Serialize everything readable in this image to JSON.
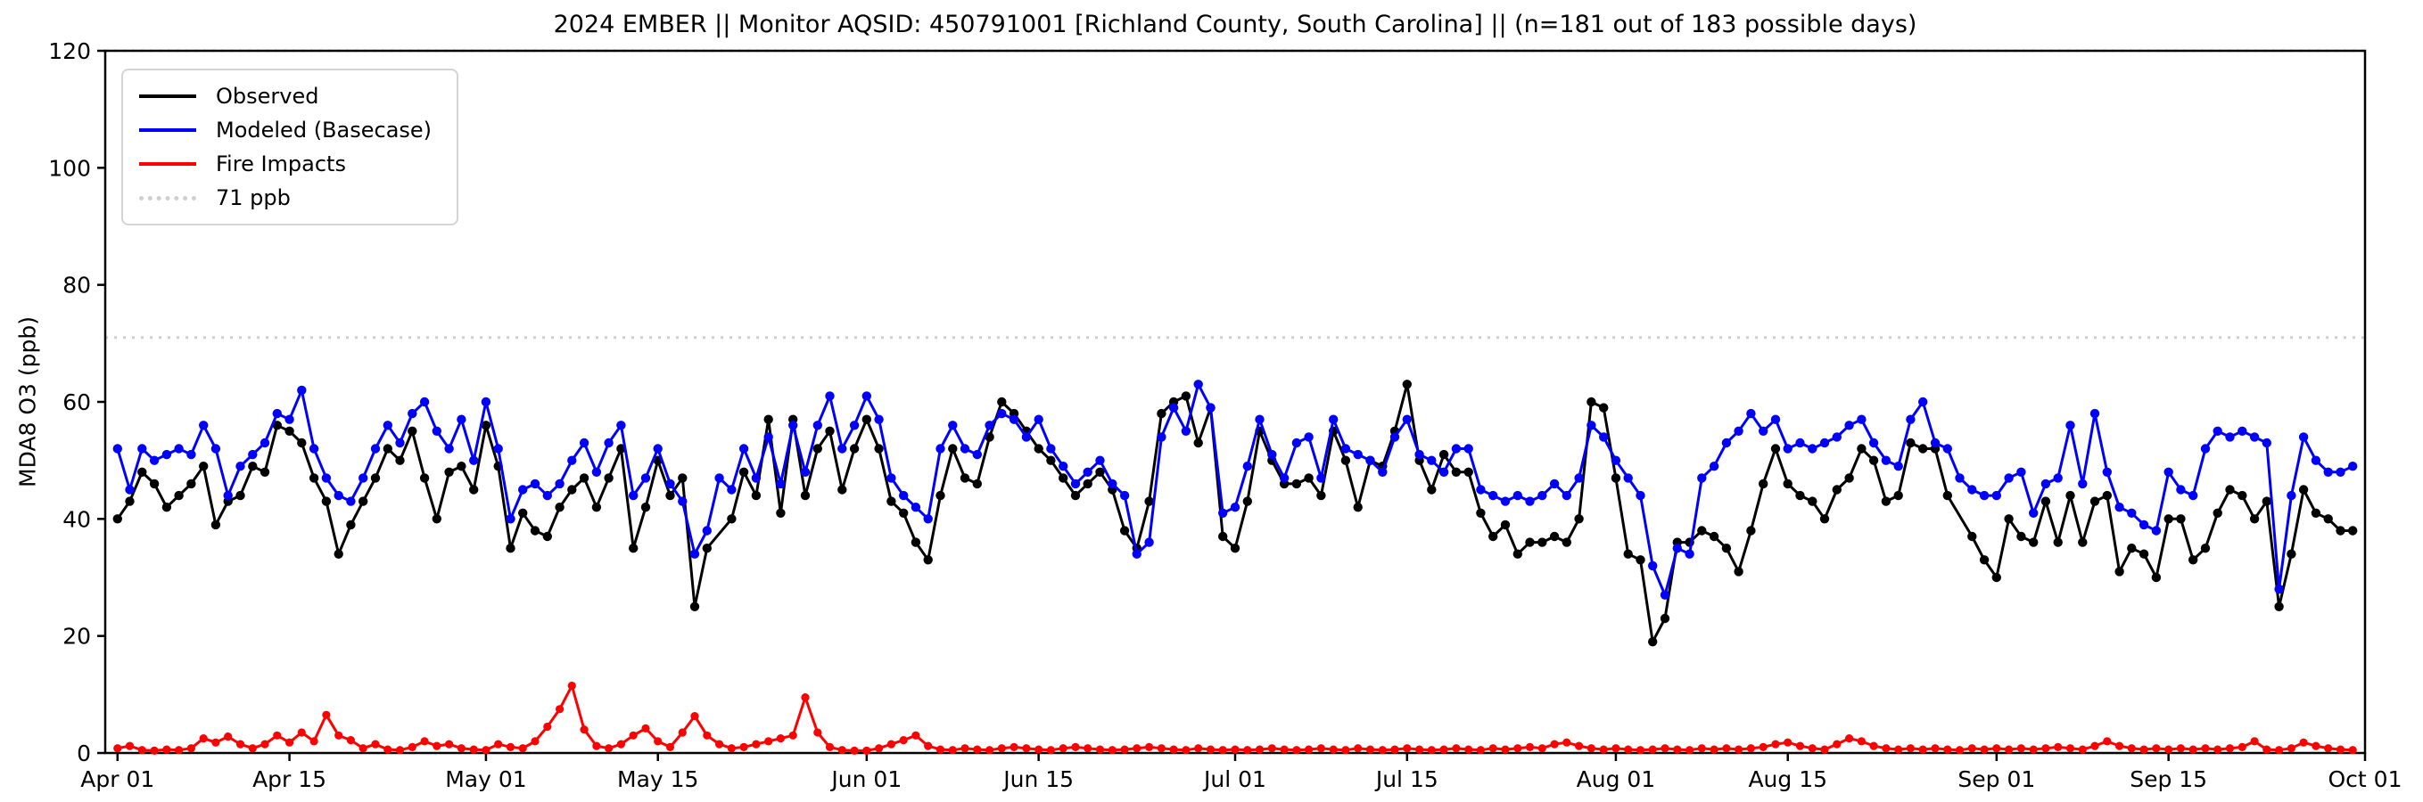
{
  "chart_data": {
    "type": "line",
    "title": "2024 EMBER || Monitor AQSID: 450791001 [Richland County, South Carolina] || (n=181 out of 183 possible days)",
    "ylabel": "MDA8 O3 (ppb)",
    "ylim": [
      0,
      120
    ],
    "yticks": [
      0,
      20,
      40,
      60,
      80,
      100,
      120
    ],
    "xticks": {
      "labels": [
        "Apr 01",
        "Apr 15",
        "May 01",
        "May 15",
        "Jun 01",
        "Jun 15",
        "Jul 01",
        "Jul 15",
        "Aug 01",
        "Aug 15",
        "Sep 01",
        "Sep 15",
        "Oct 01"
      ],
      "days": [
        0,
        14,
        30,
        44,
        61,
        75,
        91,
        105,
        122,
        136,
        153,
        167,
        183
      ]
    },
    "x_days_total": 183,
    "x_range_labels": [
      "Apr 01",
      "Oct 01"
    ],
    "grid": false,
    "legend_position": "upper left",
    "thresholds": [
      {
        "label": "71 ppb",
        "value": 71,
        "color": "#cfcfcf",
        "style": "dotted",
        "in_legend": true
      },
      {
        "label": "",
        "value": 120,
        "color": "#cfcfcf",
        "style": "dotted",
        "in_legend": false
      }
    ],
    "series": [
      {
        "name": "Observed",
        "color": "#000000",
        "marker": "circle",
        "n_days": 181,
        "values": [
          40,
          43,
          48,
          46,
          42,
          44,
          46,
          49,
          39,
          43,
          44,
          49,
          48,
          56,
          55,
          53,
          47,
          43,
          34,
          39,
          43,
          47,
          52,
          50,
          55,
          47,
          40,
          48,
          49,
          45,
          56,
          49,
          35,
          41,
          38,
          37,
          42,
          45,
          47,
          42,
          47,
          52,
          35,
          42,
          50,
          44,
          47,
          25,
          35,
          null,
          40,
          48,
          44,
          57,
          41,
          57,
          44,
          52,
          55,
          45,
          52,
          57,
          52,
          43,
          41,
          36,
          33,
          44,
          52,
          47,
          46,
          54,
          60,
          58,
          55,
          52,
          50,
          47,
          44,
          46,
          48,
          45,
          38,
          35,
          43,
          58,
          60,
          61,
          53,
          59,
          37,
          35,
          43,
          55,
          50,
          46,
          46,
          47,
          44,
          55,
          50,
          42,
          50,
          49,
          55,
          63,
          50,
          45,
          51,
          48,
          48,
          41,
          37,
          39,
          34,
          36,
          36,
          37,
          36,
          40,
          60,
          59,
          47,
          34,
          33,
          19,
          23,
          36,
          36,
          38,
          37,
          35,
          31,
          38,
          46,
          52,
          46,
          44,
          43,
          40,
          45,
          47,
          52,
          50,
          43,
          44,
          53,
          52,
          52,
          44,
          null,
          37,
          33,
          30,
          40,
          37,
          36,
          43,
          36,
          44,
          36,
          43,
          44,
          31,
          35,
          34,
          30,
          40,
          40,
          33,
          35,
          41,
          45,
          44,
          40,
          43,
          25,
          34,
          45,
          41,
          40,
          38,
          38
        ]
      },
      {
        "name": "Modeled (Basecase)",
        "color": "#0000ff",
        "marker": "circle",
        "n_days": 183,
        "values": [
          52,
          45,
          52,
          50,
          51,
          52,
          51,
          56,
          52,
          44,
          49,
          51,
          53,
          58,
          57,
          62,
          52,
          47,
          44,
          43,
          47,
          52,
          56,
          53,
          58,
          60,
          55,
          52,
          57,
          50,
          60,
          52,
          40,
          45,
          46,
          44,
          46,
          50,
          53,
          48,
          53,
          56,
          44,
          47,
          52,
          46,
          43,
          34,
          38,
          47,
          45,
          52,
          47,
          54,
          46,
          56,
          48,
          56,
          61,
          52,
          56,
          61,
          57,
          47,
          44,
          42,
          40,
          52,
          56,
          52,
          51,
          56,
          58,
          57,
          54,
          57,
          52,
          49,
          46,
          48,
          50,
          46,
          44,
          34,
          36,
          54,
          59,
          55,
          63,
          59,
          41,
          42,
          49,
          57,
          51,
          47,
          53,
          54,
          47,
          57,
          52,
          51,
          50,
          48,
          54,
          57,
          51,
          50,
          48,
          52,
          52,
          45,
          44,
          43,
          44,
          43,
          44,
          46,
          44,
          47,
          56,
          54,
          50,
          47,
          44,
          32,
          27,
          35,
          34,
          47,
          49,
          53,
          55,
          58,
          55,
          57,
          52,
          53,
          52,
          53,
          54,
          56,
          57,
          53,
          50,
          49,
          57,
          60,
          53,
          52,
          47,
          45,
          44,
          44,
          47,
          48,
          41,
          46,
          47,
          56,
          46,
          58,
          48,
          42,
          41,
          39,
          38,
          48,
          45,
          44,
          52,
          55,
          54,
          55,
          54,
          53,
          28,
          44,
          54,
          50,
          48,
          48,
          49
        ]
      },
      {
        "name": "Fire Impacts",
        "color": "#ff0000",
        "marker": "circle",
        "n_days": 183,
        "values": [
          0.8,
          1.2,
          0.5,
          0.4,
          0.6,
          0.5,
          0.8,
          2.5,
          1.8,
          2.8,
          1.5,
          0.8,
          1.5,
          3.0,
          1.8,
          3.5,
          2.0,
          6.5,
          3.0,
          2.2,
          0.8,
          1.5,
          0.6,
          0.5,
          1.0,
          2.0,
          1.2,
          1.5,
          0.8,
          0.6,
          0.5,
          1.5,
          1.0,
          0.8,
          2.0,
          4.5,
          7.5,
          11.5,
          4.0,
          1.2,
          0.8,
          1.5,
          3.0,
          4.2,
          2.0,
          1.0,
          3.5,
          6.3,
          3.0,
          1.5,
          0.8,
          1.0,
          1.5,
          2.0,
          2.5,
          3.0,
          9.5,
          3.5,
          1.0,
          0.5,
          0.4,
          0.4,
          0.8,
          1.5,
          2.2,
          3.0,
          1.2,
          0.6,
          0.5,
          0.8,
          0.6,
          0.5,
          0.8,
          1.0,
          0.8,
          0.6,
          0.5,
          0.8,
          1.0,
          0.8,
          0.6,
          0.5,
          0.6,
          0.8,
          1.0,
          0.8,
          0.6,
          0.5,
          0.8,
          0.6,
          0.5,
          0.6,
          0.5,
          0.6,
          0.8,
          0.6,
          0.5,
          0.6,
          0.8,
          0.6,
          0.5,
          0.8,
          0.6,
          0.5,
          0.6,
          0.8,
          0.6,
          0.5,
          0.6,
          0.8,
          0.6,
          0.5,
          0.8,
          0.6,
          0.8,
          1.0,
          0.8,
          1.5,
          1.8,
          1.2,
          0.8,
          0.6,
          0.8,
          0.6,
          0.5,
          0.6,
          0.8,
          0.6,
          0.5,
          0.8,
          0.6,
          0.8,
          0.6,
          0.8,
          1.0,
          1.5,
          1.8,
          1.2,
          0.8,
          0.6,
          1.5,
          2.5,
          2.0,
          1.2,
          0.8,
          0.6,
          0.8,
          0.6,
          0.8,
          0.6,
          0.5,
          0.8,
          0.6,
          0.8,
          0.6,
          0.8,
          0.6,
          0.8,
          1.0,
          0.8,
          0.6,
          1.2,
          2.0,
          1.2,
          0.8,
          0.6,
          0.8,
          0.6,
          0.8,
          0.6,
          0.8,
          0.6,
          0.8,
          1.0,
          2.0,
          0.6,
          0.5,
          0.8,
          1.8,
          1.2,
          0.8,
          0.6,
          0.5
        ]
      }
    ]
  },
  "legend": {
    "items": [
      {
        "label": "Observed"
      },
      {
        "label": "Modeled (Basecase)"
      },
      {
        "label": "Fire Impacts"
      },
      {
        "label": "71 ppb"
      }
    ]
  }
}
